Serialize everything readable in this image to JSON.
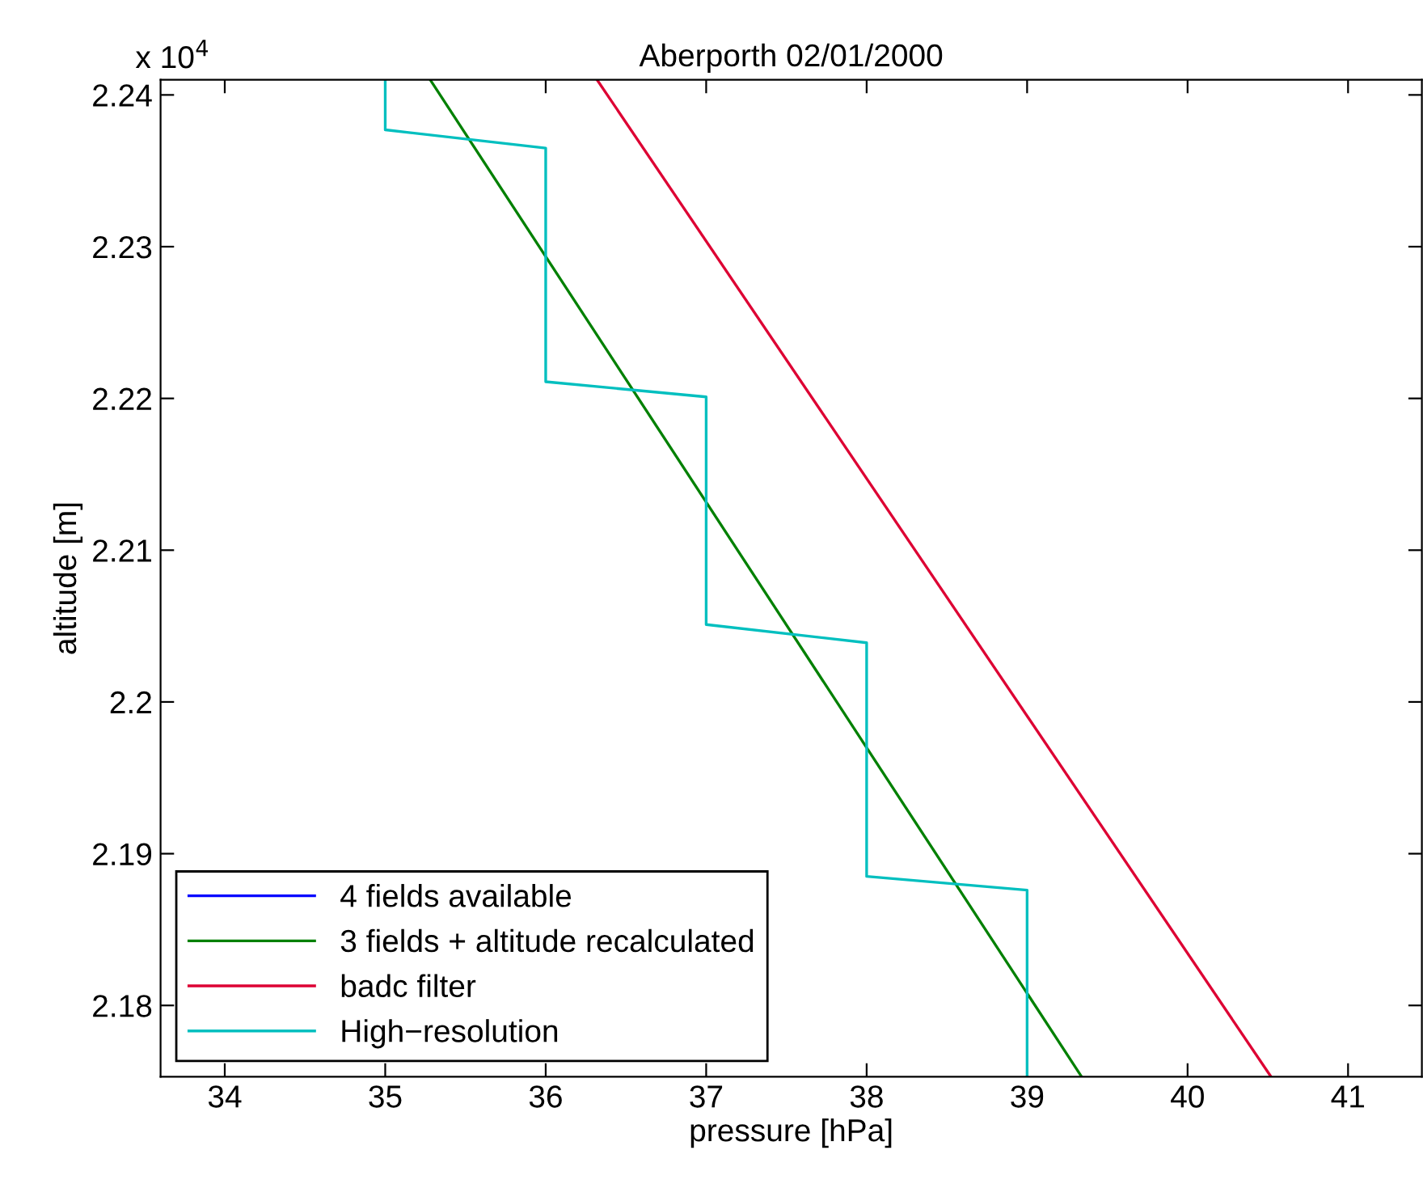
{
  "chart_data": {
    "type": "line",
    "title": "Aberporth 02/01/2000",
    "xlabel": "pressure [hPa]",
    "ylabel": "altitude [m]",
    "annotations": [
      "x 10$^{4}$"
    ],
    "xlim": [
      33.6,
      41.46
    ],
    "xticks": [
      34,
      35,
      36,
      37,
      38,
      39,
      40,
      41
    ],
    "ylim": [
      2.1753,
      2.241
    ],
    "yticks": [
      2.18,
      2.19,
      2.2,
      2.21,
      2.22,
      2.23,
      2.24
    ],
    "grid": false,
    "legend": "bottom left",
    "marker": "none",
    "line_style": "solid",
    "series": [
      {
        "name": "4 fields available",
        "color": "#0000ff",
        "x": [
          null,
          null
        ],
        "values": [
          null,
          null
        ]
      },
      {
        "name": "3 fields + altitude recalculated",
        "color": "#008000",
        "x": [
          35.28,
          39.34
        ],
        "values": [
          2.241,
          2.1753
        ]
      },
      {
        "name": "badc filter",
        "color": "#dd0033",
        "x": [
          36.32,
          40.52
        ],
        "values": [
          2.241,
          2.1753
        ]
      },
      {
        "name": "High−resolution",
        "color": "#00bfbf",
        "x": [
          35,
          35,
          36,
          36,
          37,
          37,
          38,
          38,
          39,
          39
        ],
        "values": [
          2.241,
          2.2377,
          2.2365,
          2.2211,
          2.2201,
          2.2051,
          2.2039,
          2.1885,
          2.1876,
          2.1753
        ]
      }
    ]
  }
}
